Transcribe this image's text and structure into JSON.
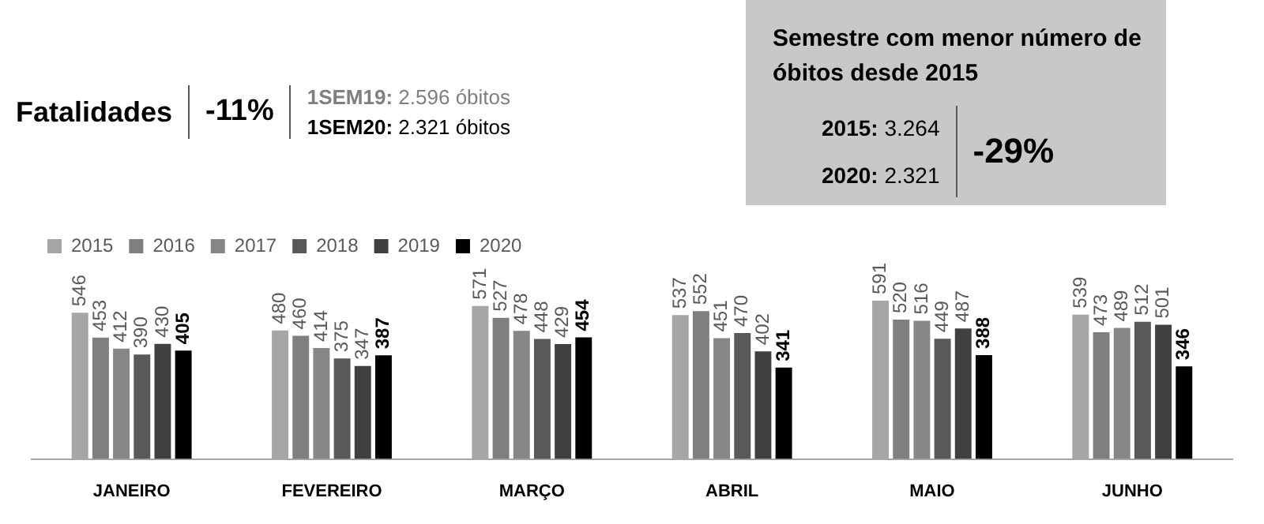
{
  "chart_data": {
    "type": "bar",
    "title": "Fatalidades",
    "subtitle": "Semestre com menor número de óbitos desde 2015",
    "annotations": [
      "-11%",
      "1SEM19: 2.596 óbitos",
      "1SEM20: 2.321 óbitos",
      "2015: 3.264",
      "2020: 2.321",
      "-29%"
    ],
    "categories": [
      "JANEIRO",
      "FEVEREIRO",
      "MARÇO",
      "ABRIL",
      "MAIO",
      "JUNHO"
    ],
    "series": [
      {
        "name": "2015",
        "color": "#a6a6a6",
        "values": [
          546,
          480,
          571,
          537,
          591,
          539
        ]
      },
      {
        "name": "2016",
        "color": "#7f7f7f",
        "values": [
          453,
          460,
          527,
          552,
          520,
          473
        ]
      },
      {
        "name": "2017",
        "color": "#868686",
        "values": [
          412,
          414,
          478,
          451,
          516,
          489
        ]
      },
      {
        "name": "2018",
        "color": "#595959",
        "values": [
          390,
          375,
          448,
          470,
          449,
          512
        ]
      },
      {
        "name": "2019",
        "color": "#404040",
        "values": [
          430,
          347,
          429,
          402,
          487,
          501
        ]
      },
      {
        "name": "2020",
        "color": "#000000",
        "values": [
          405,
          387,
          454,
          341,
          388,
          346
        ]
      }
    ],
    "data_labels": true,
    "legend": "top left",
    "grid": false
  }
}
